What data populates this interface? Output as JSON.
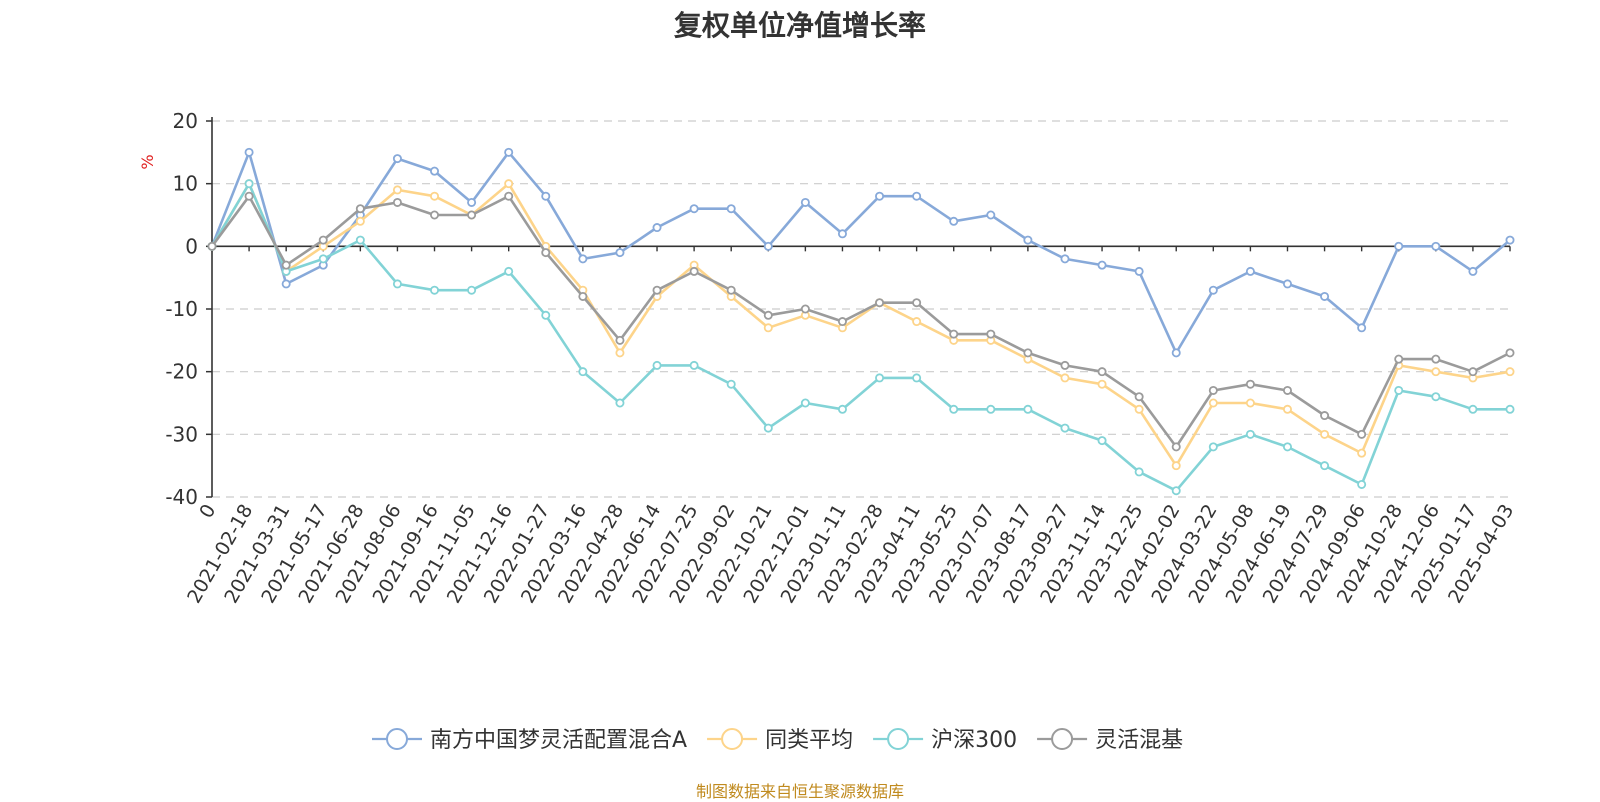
{
  "chart_data": {
    "type": "line",
    "title": "复权单位净值增长率",
    "ylabel": "%",
    "ylim": [
      -40,
      20
    ],
    "yticks": [
      "20",
      "10",
      "0",
      "-10",
      "-20",
      "-30",
      "-40"
    ],
    "x_tick_labels": [
      "0",
      "2021-02-18",
      "2021-03-31",
      "2021-05-17",
      "2021-06-28",
      "2021-08-06",
      "2021-09-16",
      "2021-11-05",
      "2021-12-16",
      "2022-01-27",
      "2022-03-16",
      "2022-04-28",
      "2022-06-14",
      "2022-07-25",
      "2022-09-02",
      "2022-10-21",
      "2022-12-01",
      "2023-01-11",
      "2023-02-28",
      "2023-04-11",
      "2023-05-25",
      "2023-07-07",
      "2023-08-17",
      "2023-09-27",
      "2023-11-14",
      "2023-12-25",
      "2024-02-02",
      "2024-03-22",
      "2024-05-08",
      "2024-06-19",
      "2024-07-29",
      "2024-09-06",
      "2024-10-28",
      "2024-12-06",
      "2025-01-17",
      "2025-04-03"
    ],
    "x": [
      "0",
      "2021-02-18",
      "2021-03-31",
      "2021-05-17",
      "2021-06-28",
      "2021-08-06",
      "2021-09-16",
      "2021-11-05",
      "2021-12-16",
      "2022-01-27",
      "2022-03-16",
      "2022-04-28",
      "2022-06-14",
      "2022-07-25",
      "2022-09-02",
      "2022-10-21",
      "2022-12-01",
      "2023-01-11",
      "2023-02-28",
      "2023-04-11",
      "2023-05-25",
      "2023-07-07",
      "2023-08-17",
      "2023-09-27",
      "2023-11-14",
      "2023-12-25",
      "2024-02-02",
      "2024-03-22",
      "2024-05-08",
      "2024-06-19",
      "2024-07-29",
      "2024-09-06",
      "2024-10-28",
      "2024-12-06",
      "2025-01-17",
      "2025-04-03"
    ],
    "series": [
      {
        "name": "南方中国梦灵活配置混合A",
        "color": "#87a9d9",
        "values": [
          0,
          15,
          -6,
          -3,
          5,
          14,
          12,
          7,
          15,
          8,
          -2,
          -1,
          3,
          6,
          6,
          0,
          7,
          2,
          8,
          8,
          4,
          5,
          1,
          -2,
          -3,
          -4,
          -17,
          -7,
          -4,
          -6,
          -8,
          -13,
          0,
          0,
          -4,
          1
        ]
      },
      {
        "name": "同类平均",
        "color": "#fdd48a",
        "values": [
          0,
          10,
          -4,
          0,
          4,
          9,
          8,
          5,
          10,
          0,
          -7,
          -17,
          -8,
          -3,
          -8,
          -13,
          -11,
          -13,
          -9,
          -12,
          -15,
          -15,
          -18,
          -21,
          -22,
          -26,
          -35,
          -25,
          -25,
          -26,
          -30,
          -33,
          -19,
          -20,
          -21,
          -20
        ]
      },
      {
        "name": "沪深300",
        "color": "#82d3d6",
        "values": [
          0,
          10,
          -4,
          -2,
          1,
          -6,
          -7,
          -7,
          -4,
          -11,
          -20,
          -25,
          -19,
          -19,
          -22,
          -29,
          -25,
          -26,
          -21,
          -21,
          -26,
          -26,
          -26,
          -29,
          -31,
          -36,
          -39,
          -32,
          -30,
          -32,
          -35,
          -38,
          -23,
          -24,
          -26,
          -26
        ]
      },
      {
        "name": "灵活混基",
        "color": "#9b9b9b",
        "values": [
          0,
          8,
          -3,
          1,
          6,
          7,
          5,
          5,
          8,
          -1,
          -8,
          -15,
          -7,
          -4,
          -7,
          -11,
          -10,
          -12,
          -9,
          -9,
          -14,
          -14,
          -17,
          -19,
          -20,
          -24,
          -32,
          -23,
          -22,
          -23,
          -27,
          -30,
          -18,
          -18,
          -20,
          -17
        ]
      }
    ],
    "legend_position": "bottom",
    "grid": true
  },
  "source_note": "制图数据来自恒生聚源数据库"
}
